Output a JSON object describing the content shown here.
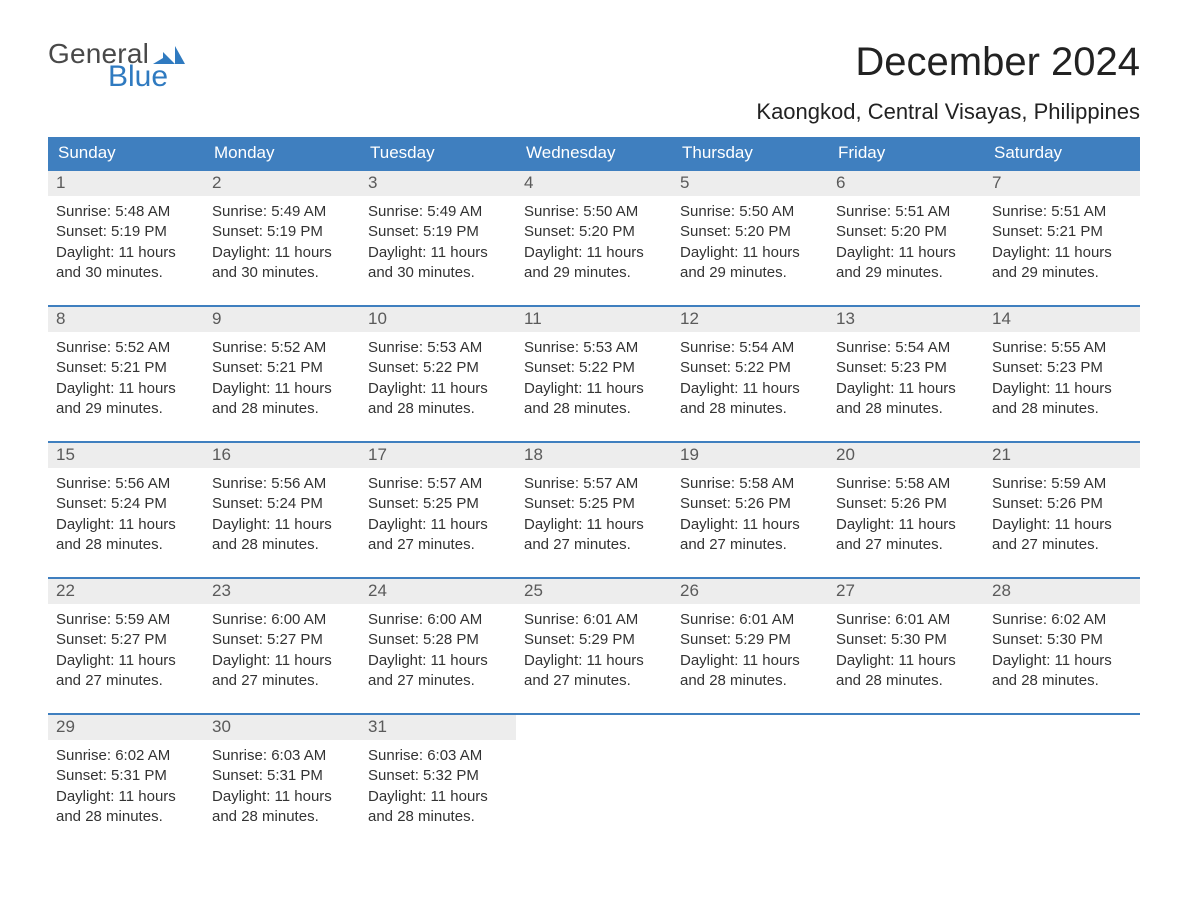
{
  "logo": {
    "line1": "General",
    "line2": "Blue",
    "text_color_general": "#494949",
    "text_color_blue": "#2f7ac0",
    "flag_color": "#2f7ac0"
  },
  "title": "December 2024",
  "location": "Kaongkod, Central Visayas, Philippines",
  "colors": {
    "header_bg": "#3f7fbf",
    "header_text": "#ffffff",
    "row_divider": "#3f7fbf",
    "daynum_bg": "#ededed",
    "daynum_text": "#5a5a5a",
    "body_bg": "#ffffff",
    "body_text": "#333333"
  },
  "day_headers": [
    "Sunday",
    "Monday",
    "Tuesday",
    "Wednesday",
    "Thursday",
    "Friday",
    "Saturday"
  ],
  "weeks": [
    [
      {
        "n": "1",
        "sunrise": "Sunrise: 5:48 AM",
        "sunset": "Sunset: 5:19 PM",
        "dl1": "Daylight: 11 hours",
        "dl2": "and 30 minutes."
      },
      {
        "n": "2",
        "sunrise": "Sunrise: 5:49 AM",
        "sunset": "Sunset: 5:19 PM",
        "dl1": "Daylight: 11 hours",
        "dl2": "and 30 minutes."
      },
      {
        "n": "3",
        "sunrise": "Sunrise: 5:49 AM",
        "sunset": "Sunset: 5:19 PM",
        "dl1": "Daylight: 11 hours",
        "dl2": "and 30 minutes."
      },
      {
        "n": "4",
        "sunrise": "Sunrise: 5:50 AM",
        "sunset": "Sunset: 5:20 PM",
        "dl1": "Daylight: 11 hours",
        "dl2": "and 29 minutes."
      },
      {
        "n": "5",
        "sunrise": "Sunrise: 5:50 AM",
        "sunset": "Sunset: 5:20 PM",
        "dl1": "Daylight: 11 hours",
        "dl2": "and 29 minutes."
      },
      {
        "n": "6",
        "sunrise": "Sunrise: 5:51 AM",
        "sunset": "Sunset: 5:20 PM",
        "dl1": "Daylight: 11 hours",
        "dl2": "and 29 minutes."
      },
      {
        "n": "7",
        "sunrise": "Sunrise: 5:51 AM",
        "sunset": "Sunset: 5:21 PM",
        "dl1": "Daylight: 11 hours",
        "dl2": "and 29 minutes."
      }
    ],
    [
      {
        "n": "8",
        "sunrise": "Sunrise: 5:52 AM",
        "sunset": "Sunset: 5:21 PM",
        "dl1": "Daylight: 11 hours",
        "dl2": "and 29 minutes."
      },
      {
        "n": "9",
        "sunrise": "Sunrise: 5:52 AM",
        "sunset": "Sunset: 5:21 PM",
        "dl1": "Daylight: 11 hours",
        "dl2": "and 28 minutes."
      },
      {
        "n": "10",
        "sunrise": "Sunrise: 5:53 AM",
        "sunset": "Sunset: 5:22 PM",
        "dl1": "Daylight: 11 hours",
        "dl2": "and 28 minutes."
      },
      {
        "n": "11",
        "sunrise": "Sunrise: 5:53 AM",
        "sunset": "Sunset: 5:22 PM",
        "dl1": "Daylight: 11 hours",
        "dl2": "and 28 minutes."
      },
      {
        "n": "12",
        "sunrise": "Sunrise: 5:54 AM",
        "sunset": "Sunset: 5:22 PM",
        "dl1": "Daylight: 11 hours",
        "dl2": "and 28 minutes."
      },
      {
        "n": "13",
        "sunrise": "Sunrise: 5:54 AM",
        "sunset": "Sunset: 5:23 PM",
        "dl1": "Daylight: 11 hours",
        "dl2": "and 28 minutes."
      },
      {
        "n": "14",
        "sunrise": "Sunrise: 5:55 AM",
        "sunset": "Sunset: 5:23 PM",
        "dl1": "Daylight: 11 hours",
        "dl2": "and 28 minutes."
      }
    ],
    [
      {
        "n": "15",
        "sunrise": "Sunrise: 5:56 AM",
        "sunset": "Sunset: 5:24 PM",
        "dl1": "Daylight: 11 hours",
        "dl2": "and 28 minutes."
      },
      {
        "n": "16",
        "sunrise": "Sunrise: 5:56 AM",
        "sunset": "Sunset: 5:24 PM",
        "dl1": "Daylight: 11 hours",
        "dl2": "and 28 minutes."
      },
      {
        "n": "17",
        "sunrise": "Sunrise: 5:57 AM",
        "sunset": "Sunset: 5:25 PM",
        "dl1": "Daylight: 11 hours",
        "dl2": "and 27 minutes."
      },
      {
        "n": "18",
        "sunrise": "Sunrise: 5:57 AM",
        "sunset": "Sunset: 5:25 PM",
        "dl1": "Daylight: 11 hours",
        "dl2": "and 27 minutes."
      },
      {
        "n": "19",
        "sunrise": "Sunrise: 5:58 AM",
        "sunset": "Sunset: 5:26 PM",
        "dl1": "Daylight: 11 hours",
        "dl2": "and 27 minutes."
      },
      {
        "n": "20",
        "sunrise": "Sunrise: 5:58 AM",
        "sunset": "Sunset: 5:26 PM",
        "dl1": "Daylight: 11 hours",
        "dl2": "and 27 minutes."
      },
      {
        "n": "21",
        "sunrise": "Sunrise: 5:59 AM",
        "sunset": "Sunset: 5:26 PM",
        "dl1": "Daylight: 11 hours",
        "dl2": "and 27 minutes."
      }
    ],
    [
      {
        "n": "22",
        "sunrise": "Sunrise: 5:59 AM",
        "sunset": "Sunset: 5:27 PM",
        "dl1": "Daylight: 11 hours",
        "dl2": "and 27 minutes."
      },
      {
        "n": "23",
        "sunrise": "Sunrise: 6:00 AM",
        "sunset": "Sunset: 5:27 PM",
        "dl1": "Daylight: 11 hours",
        "dl2": "and 27 minutes."
      },
      {
        "n": "24",
        "sunrise": "Sunrise: 6:00 AM",
        "sunset": "Sunset: 5:28 PM",
        "dl1": "Daylight: 11 hours",
        "dl2": "and 27 minutes."
      },
      {
        "n": "25",
        "sunrise": "Sunrise: 6:01 AM",
        "sunset": "Sunset: 5:29 PM",
        "dl1": "Daylight: 11 hours",
        "dl2": "and 27 minutes."
      },
      {
        "n": "26",
        "sunrise": "Sunrise: 6:01 AM",
        "sunset": "Sunset: 5:29 PM",
        "dl1": "Daylight: 11 hours",
        "dl2": "and 28 minutes."
      },
      {
        "n": "27",
        "sunrise": "Sunrise: 6:01 AM",
        "sunset": "Sunset: 5:30 PM",
        "dl1": "Daylight: 11 hours",
        "dl2": "and 28 minutes."
      },
      {
        "n": "28",
        "sunrise": "Sunrise: 6:02 AM",
        "sunset": "Sunset: 5:30 PM",
        "dl1": "Daylight: 11 hours",
        "dl2": "and 28 minutes."
      }
    ],
    [
      {
        "n": "29",
        "sunrise": "Sunrise: 6:02 AM",
        "sunset": "Sunset: 5:31 PM",
        "dl1": "Daylight: 11 hours",
        "dl2": "and 28 minutes."
      },
      {
        "n": "30",
        "sunrise": "Sunrise: 6:03 AM",
        "sunset": "Sunset: 5:31 PM",
        "dl1": "Daylight: 11 hours",
        "dl2": "and 28 minutes."
      },
      {
        "n": "31",
        "sunrise": "Sunrise: 6:03 AM",
        "sunset": "Sunset: 5:32 PM",
        "dl1": "Daylight: 11 hours",
        "dl2": "and 28 minutes."
      },
      {
        "empty": true
      },
      {
        "empty": true
      },
      {
        "empty": true
      },
      {
        "empty": true
      }
    ]
  ]
}
